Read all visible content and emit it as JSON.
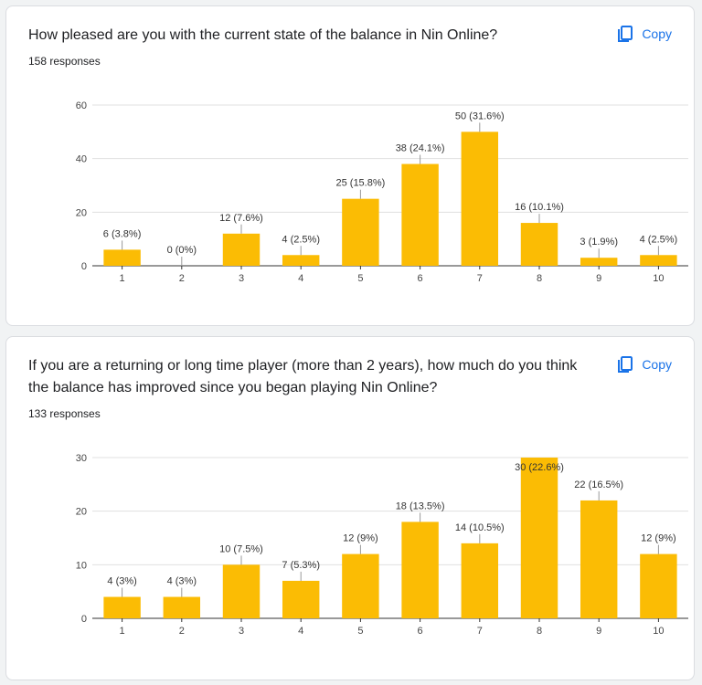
{
  "copy_label": "Copy",
  "colors": {
    "bar": "#fbbc04",
    "accent": "#1a73e8",
    "grid": "#e0e0e0"
  },
  "icons": {
    "copy": "copy-icon"
  },
  "questions": [
    {
      "title": "How pleased are you with the current state of the balance in Nin Online?",
      "responses": "158 responses"
    },
    {
      "title": "If you are a returning or long time player (more than 2 years), how much do you think the balance has improved since you began playing Nin Online?",
      "responses": "133 responses"
    }
  ],
  "chart_data": [
    {
      "type": "bar",
      "categories": [
        "1",
        "2",
        "3",
        "4",
        "5",
        "6",
        "7",
        "8",
        "9",
        "10"
      ],
      "values": [
        6,
        0,
        12,
        4,
        25,
        38,
        50,
        16,
        3,
        4
      ],
      "data_labels": [
        "6 (3.8%)",
        "0 (0%)",
        "12 (7.6%)",
        "4 (2.5%)",
        "25 (15.8%)",
        "38 (24.1%)",
        "50 (31.6%)",
        "16 (10.1%)",
        "3 (1.9%)",
        "4 (2.5%)"
      ],
      "ylim": [
        0,
        60
      ],
      "yticks": [
        0,
        20,
        40,
        60
      ],
      "grid": true,
      "title": "",
      "xlabel": "",
      "ylabel": ""
    },
    {
      "type": "bar",
      "categories": [
        "1",
        "2",
        "3",
        "4",
        "5",
        "6",
        "7",
        "8",
        "9",
        "10"
      ],
      "values": [
        4,
        4,
        10,
        7,
        12,
        18,
        14,
        30,
        22,
        12
      ],
      "data_labels": [
        "4 (3%)",
        "4 (3%)",
        "10 (7.5%)",
        "7 (5.3%)",
        "12 (9%)",
        "18 (13.5%)",
        "14 (10.5%)",
        "30 (22.6%)",
        "22 (16.5%)",
        "12 (9%)"
      ],
      "ylim": [
        0,
        30
      ],
      "yticks": [
        0,
        10,
        20,
        30
      ],
      "grid": true,
      "title": "",
      "xlabel": "",
      "ylabel": ""
    }
  ]
}
